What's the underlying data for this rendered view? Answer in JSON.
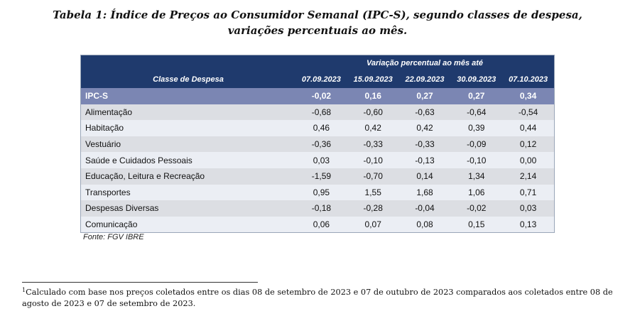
{
  "title": {
    "label": "Tabela 1",
    "line1": "Índice de Preços ao Consumidor Semanal (IPC-S), segundo classes de despesa,",
    "line2": "variações percentuais ao mês."
  },
  "table": {
    "group_header": "Variação percentual ao mês até",
    "col_header": "Classe de Despesa",
    "dates": [
      "07.09.2023",
      "15.09.2023",
      "22.09.2023",
      "30.09.2023",
      "07.10.2023"
    ],
    "rows": [
      {
        "name": "IPC-S",
        "values": [
          "-0,02",
          "0,16",
          "0,27",
          "0,27",
          "0,34"
        ]
      },
      {
        "name": "Alimentação",
        "values": [
          "-0,68",
          "-0,60",
          "-0,63",
          "-0,64",
          "-0,54"
        ]
      },
      {
        "name": "Habitação",
        "values": [
          "0,46",
          "0,42",
          "0,42",
          "0,39",
          "0,44"
        ]
      },
      {
        "name": "Vestuário",
        "values": [
          "-0,36",
          "-0,33",
          "-0,33",
          "-0,09",
          "0,12"
        ]
      },
      {
        "name": "Saúde e Cuidados Pessoais",
        "values": [
          "0,03",
          "-0,10",
          "-0,13",
          "-0,10",
          "0,00"
        ]
      },
      {
        "name": "Educação, Leitura e Recreação",
        "values": [
          "-1,59",
          "-0,70",
          "0,14",
          "1,34",
          "2,14"
        ]
      },
      {
        "name": "Transportes",
        "values": [
          "0,95",
          "1,55",
          "1,68",
          "1,06",
          "0,71"
        ]
      },
      {
        "name": "Despesas Diversas",
        "values": [
          "-0,18",
          "-0,28",
          "-0,04",
          "-0,02",
          "0,03"
        ]
      },
      {
        "name": "Comunicação",
        "values": [
          "0,06",
          "0,07",
          "0,08",
          "0,15",
          "0,13"
        ]
      }
    ]
  },
  "source": "Fonte: FGV IBRE",
  "footnote": {
    "marker": "1",
    "text": "Calculado com base nos preços coletados entre os dias 08 de setembro de 2023 e 07 de outubro de 2023 comparados aos coletados entre 08 de agosto de 2023 e 07 de setembro de 2023."
  }
}
